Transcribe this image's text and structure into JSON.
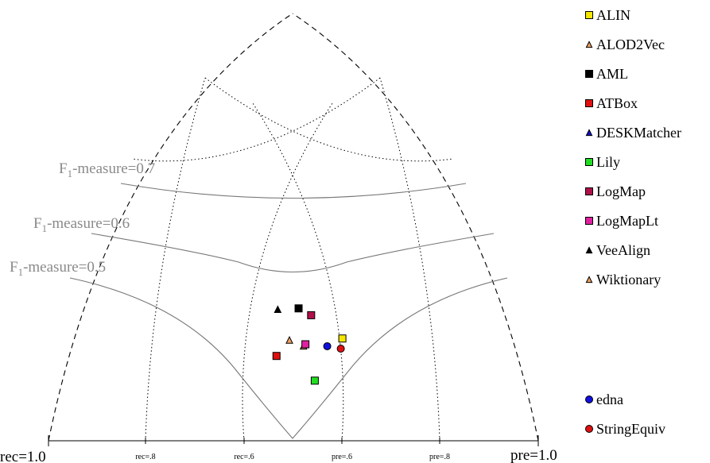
{
  "chart_data": {
    "type": "scatter",
    "axes": {
      "left_end": "rec=1.0",
      "right_end": "pre=1.0",
      "ticks": [
        "rec=.8",
        "rec=.6",
        "pre=.6",
        "pre=.8"
      ]
    },
    "f_measure_labels": [
      {
        "prefix": "F",
        "sub": "1",
        "suffix": "-measure=0.7"
      },
      {
        "prefix": "F",
        "sub": "1",
        "suffix": "-measure=0.6"
      },
      {
        "prefix": "F",
        "sub": "1",
        "suffix": "-measure=0.5"
      }
    ],
    "series": [
      {
        "name": "ALIN",
        "marker": "square",
        "color": "#f5e600",
        "precision": 0.78,
        "recall": 0.52
      },
      {
        "name": "ALOD2Vec",
        "marker": "triangle",
        "color": "#f0a060",
        "points": [
          {
            "precision": 0.61,
            "recall": 0.63
          },
          {
            "precision": 0.63,
            "recall": 0.58
          }
        ]
      },
      {
        "name": "AML",
        "marker": "square",
        "color": "#000000",
        "precision": 0.72,
        "recall": 0.69
      },
      {
        "name": "ATBox",
        "marker": "square",
        "color": "#e01010",
        "precision": 0.54,
        "recall": 0.62
      },
      {
        "name": "DESKMatcher",
        "marker": "triangle",
        "color": "#1010d0",
        "points": []
      },
      {
        "name": "Lily",
        "marker": "square",
        "color": "#22dd22",
        "precision": 0.56,
        "recall": 0.47
      },
      {
        "name": "LogMap",
        "marker": "square",
        "color": "#b0104a",
        "precision": 0.74,
        "recall": 0.64
      },
      {
        "name": "LogMapLt",
        "marker": "square",
        "color": "#e020a0",
        "precision": 0.64,
        "recall": 0.58
      },
      {
        "name": "VeeAlign",
        "marker": "triangle",
        "color": "#000000",
        "precision": 0.66,
        "recall": 0.75
      },
      {
        "name": "Wiktionary",
        "marker": "triangle",
        "color": "#f0a060",
        "points": []
      },
      {
        "name": "edna",
        "marker": "circle",
        "color": "#1010e0",
        "precision": 0.7,
        "recall": 0.53
      },
      {
        "name": "StringEquiv",
        "marker": "circle",
        "color": "#e01010",
        "precision": 0.74,
        "recall": 0.5
      }
    ]
  }
}
